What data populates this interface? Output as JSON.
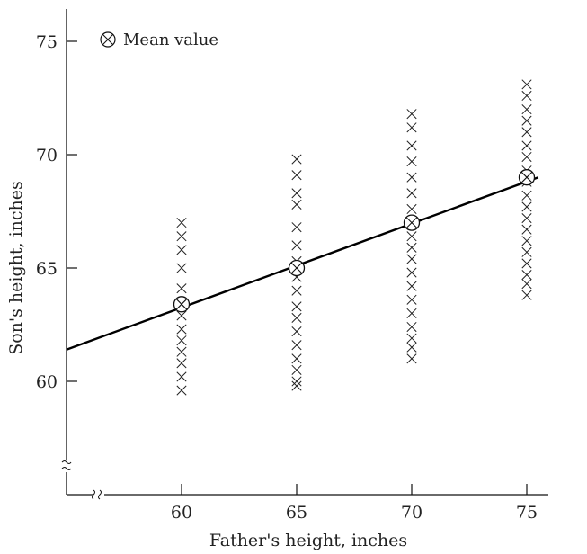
{
  "chart_data": {
    "type": "scatter",
    "xlabel": "Father's height, inches",
    "ylabel": "Son's height, inches",
    "x_ticks": [
      "60",
      "65",
      "70",
      "75"
    ],
    "y_ticks": [
      "60",
      "65",
      "70",
      "75"
    ],
    "legend": {
      "label": "Mean value",
      "placement": "top-left"
    },
    "axis_breaks": true,
    "series": [
      {
        "x": 60,
        "values": [
          67.0,
          66.4,
          65.8,
          65.0,
          64.1,
          63.4,
          62.9,
          62.3,
          61.8,
          61.3,
          60.8,
          60.2,
          59.6
        ],
        "mean": 63.4
      },
      {
        "x": 65,
        "values": [
          69.8,
          69.1,
          68.3,
          67.8,
          66.8,
          66.0,
          65.3,
          64.6,
          64.0,
          63.3,
          62.8,
          62.2,
          61.6,
          61.0,
          60.5,
          60.0,
          59.8
        ],
        "mean": 65.0
      },
      {
        "x": 70,
        "values": [
          71.8,
          71.2,
          70.4,
          69.7,
          69.0,
          68.3,
          67.6,
          67.0,
          66.4,
          65.9,
          65.4,
          64.8,
          64.2,
          63.6,
          63.0,
          62.4,
          61.9,
          61.5,
          61.0
        ],
        "mean": 67.0
      },
      {
        "x": 75,
        "values": [
          73.1,
          72.6,
          72.0,
          71.5,
          71.0,
          70.4,
          69.9,
          69.3,
          68.8,
          68.2,
          67.7,
          67.2,
          66.7,
          66.2,
          65.7,
          65.2,
          64.7,
          64.3,
          63.8
        ],
        "mean": 69.0
      }
    ],
    "regression_line": {
      "x": [
        55,
        75.5
      ],
      "y": [
        61.4,
        69.0
      ]
    }
  }
}
